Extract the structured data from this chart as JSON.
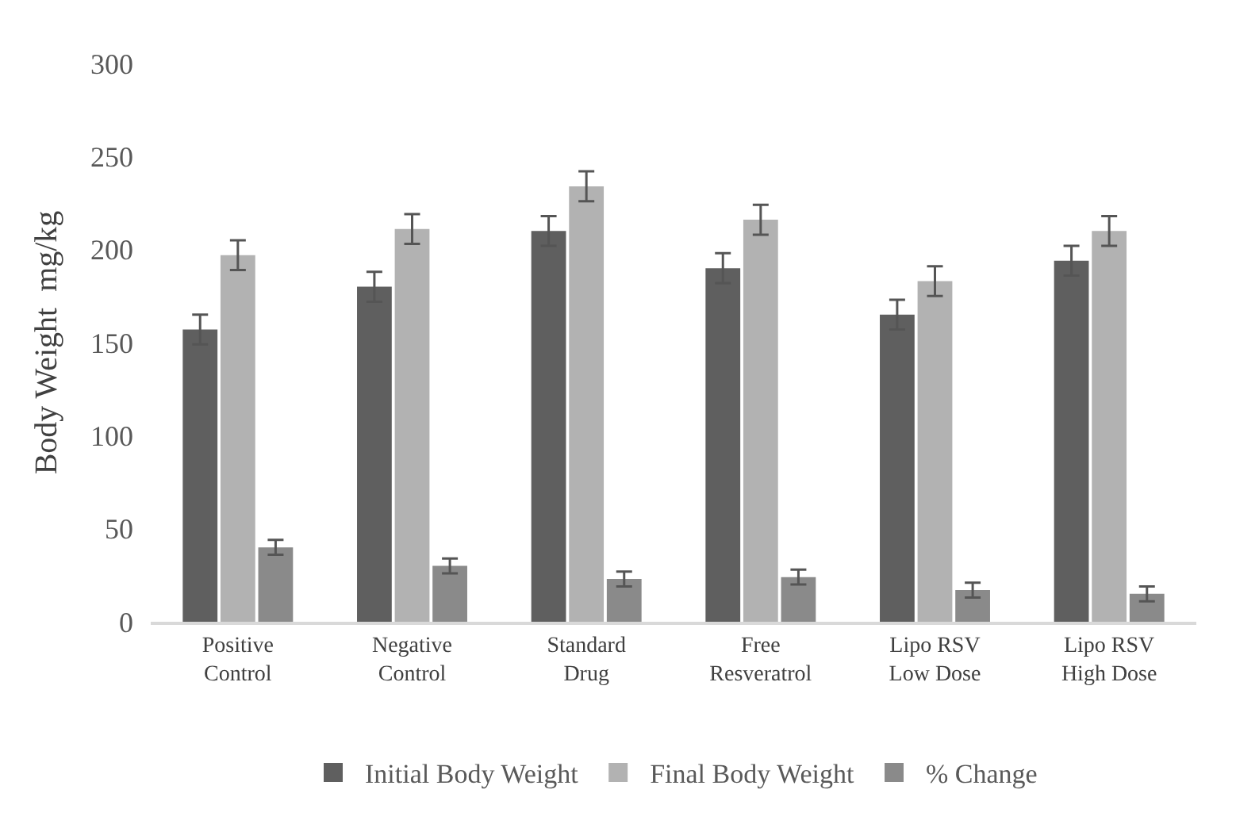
{
  "chart_data": {
    "type": "bar",
    "ylabel": "Body Weight  mg/kg",
    "categories": [
      "Positive Control",
      "Negative Control",
      "Standard Drug",
      "Free Resveratrol",
      "Lipo RSV Low Dose",
      "Lipo RSV High Dose"
    ],
    "series": [
      {
        "name": "Initial Body Weight",
        "color": "#5f5f5f",
        "values": [
          157,
          180,
          210,
          190,
          165,
          194
        ],
        "errors": [
          8,
          8,
          8,
          8,
          8,
          8
        ]
      },
      {
        "name": "Final Body Weight",
        "color": "#b2b2b2",
        "values": [
          197,
          211,
          234,
          216,
          183,
          210
        ],
        "errors": [
          8,
          8,
          8,
          8,
          8,
          8
        ]
      },
      {
        "name": "% Change",
        "color": "#8a8a8a",
        "values": [
          40,
          30,
          23,
          24,
          17,
          15
        ],
        "errors": [
          4,
          4,
          4,
          4,
          4,
          4
        ]
      }
    ],
    "ylim": [
      0,
      300
    ],
    "yticks": [
      0,
      50,
      100,
      150,
      200,
      250,
      300
    ],
    "grid": false,
    "legend": "bottom"
  }
}
